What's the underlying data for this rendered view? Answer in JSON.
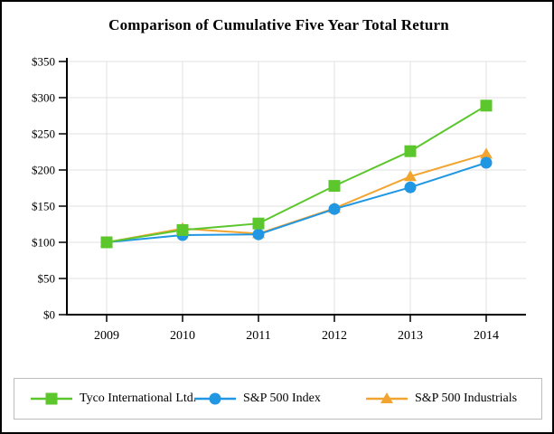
{
  "window": {
    "background": "#ffffff",
    "frame_border_color": "#000000",
    "legend_border_color": "#bdbdbd"
  },
  "chart_data": {
    "type": "line",
    "title": "Comparison of Cumulative Five Year Total Return",
    "x": [
      2009,
      2010,
      2011,
      2012,
      2013,
      2014
    ],
    "x_tick_labels": [
      "2009",
      "2010",
      "2011",
      "2012",
      "2013",
      "2014"
    ],
    "y_tick_labels": [
      "$0",
      "$50",
      "$100",
      "$150",
      "$200",
      "$250",
      "$300",
      "$350"
    ],
    "y_tick_step": 50,
    "ylim": [
      0,
      350
    ],
    "grid": true,
    "legend_position": "bottom",
    "gridline_color": "#e0e0e0",
    "axis_color": "#000000",
    "series": [
      {
        "name": "Tyco International Ltd.",
        "marker": "square",
        "color": "#5cc72d",
        "values": [
          100,
          117,
          126,
          178,
          226,
          289
        ]
      },
      {
        "name": "S&P 500 Index",
        "marker": "circle",
        "color": "#2197e3",
        "values": [
          100,
          110,
          111,
          146,
          176,
          210
        ]
      },
      {
        "name": "S&P 500 Industrials",
        "marker": "triangle",
        "color": "#f2a430",
        "values": [
          100,
          119,
          112,
          147,
          191,
          222
        ]
      }
    ]
  }
}
